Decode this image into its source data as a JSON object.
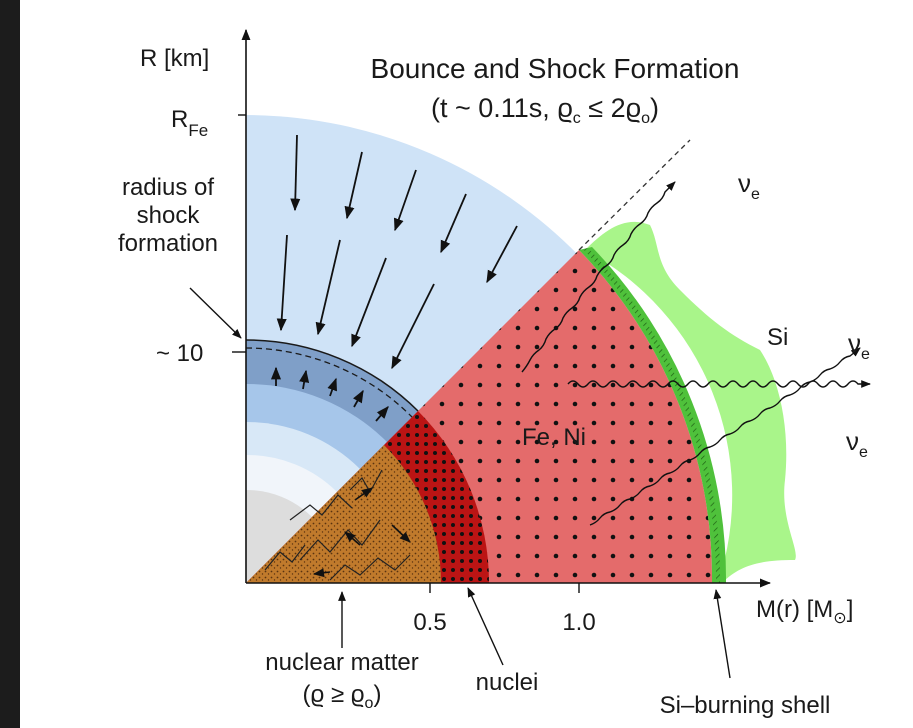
{
  "title": {
    "line1": "Bounce and Shock Formation",
    "line2_open": "(t ~ 0.11s, ",
    "rho": "ϱ",
    "c_sub": "c",
    "leq": " ≤ 2",
    "o_sub": "o",
    "close": ")"
  },
  "y_axis": {
    "label": "R [km]",
    "tick_RFe_main": "R",
    "tick_RFe_sub": "Fe",
    "tick_10": "~ 10"
  },
  "x_axis": {
    "label_main": "M(r) [M",
    "label_sun": "⊙",
    "label_close": "]",
    "tick_05": "0.5",
    "tick_10": "1.0"
  },
  "annotations": {
    "shock_radius_l1": "radius of",
    "shock_radius_l2": "shock",
    "shock_radius_l3": "formation",
    "si": "Si",
    "fe_ni": "Fe, Ni",
    "nu": "ν",
    "nu_sub": "e",
    "nuclear_matter": "nuclear matter",
    "nm_cond_rho": "(ϱ ≥ ϱ",
    "nm_cond_sub": "o",
    "nm_cond_close": ")",
    "nuclei": "nuclei",
    "si_shell": "Si–burning shell"
  },
  "colors": {
    "infall": "#cfe3f7",
    "inner_core_outer": "#7f9fc8",
    "inner_core_mid": "#a6c6ea",
    "inner_core_light": "#d8e8f7",
    "core_white": "#f1f5fa",
    "core_gray": "#dddddd",
    "nuclear_matter": "#c07a2c",
    "nuclei": "#bb1414",
    "fe_ni": "#e46b6b",
    "si_shell": "#4fc13b",
    "si": "#a9f58a",
    "left_bar": "#1c1c1c"
  }
}
